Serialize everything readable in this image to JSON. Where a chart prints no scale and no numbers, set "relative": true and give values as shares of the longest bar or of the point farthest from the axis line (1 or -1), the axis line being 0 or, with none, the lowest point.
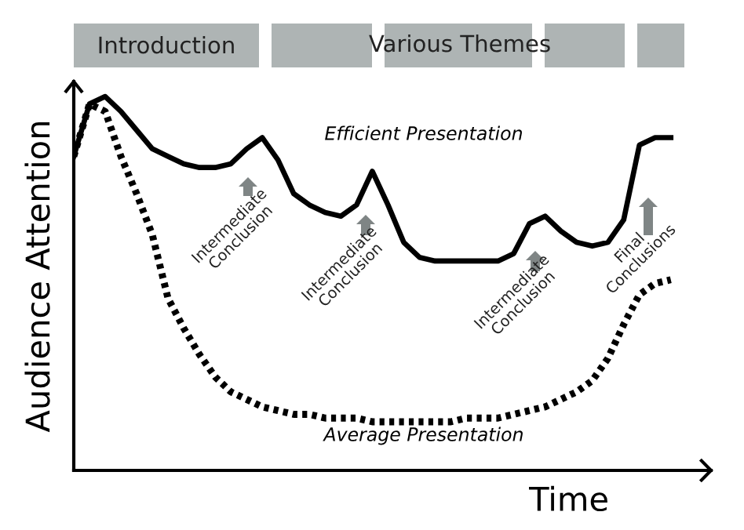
{
  "chart_data": {
    "type": "line",
    "relative": true,
    "xlabel": "Time",
    "ylabel": "Audience Attention",
    "categories": [
      null,
      null,
      null,
      null,
      null,
      null,
      null,
      null,
      null,
      null,
      null,
      null,
      null,
      null,
      null,
      null,
      null,
      null,
      null,
      null,
      null,
      null,
      null,
      null,
      null,
      null,
      null,
      null,
      null,
      null,
      null,
      null,
      null,
      null,
      null,
      null,
      null,
      null,
      null
    ],
    "series": [
      {
        "name": "Efficient Presentation",
        "color": "#000000",
        "line_style": "solid",
        "values": [
          0.84,
          0.98,
          1.0,
          0.96,
          0.91,
          0.86,
          0.84,
          0.82,
          0.81,
          0.81,
          0.82,
          0.86,
          0.89,
          0.83,
          0.74,
          0.71,
          0.69,
          0.68,
          0.71,
          0.8,
          0.71,
          0.61,
          0.57,
          0.56,
          0.56,
          0.56,
          0.56,
          0.56,
          0.58,
          0.66,
          0.68,
          0.64,
          0.61,
          0.6,
          0.61,
          0.67,
          0.87,
          0.89,
          0.89
        ]
      },
      {
        "name": "Average Presentation",
        "color": "#000000",
        "line_style": "dotted",
        "values": [
          0.84,
          0.98,
          0.96,
          0.84,
          0.74,
          0.63,
          0.46,
          0.38,
          0.31,
          0.25,
          0.21,
          0.19,
          0.17,
          0.16,
          0.15,
          0.15,
          0.14,
          0.14,
          0.14,
          0.13,
          0.13,
          0.13,
          0.13,
          0.13,
          0.13,
          0.14,
          0.14,
          0.14,
          0.15,
          0.16,
          0.17,
          0.19,
          0.21,
          0.24,
          0.3,
          0.39,
          0.47,
          0.5,
          0.51
        ]
      }
    ],
    "annotations": [
      "Introduction",
      "Various Themes",
      "Intermediate\nConclusion",
      "Intermediate\nConclusion",
      "Intermediate\nConclusion",
      "Final\nConclusions"
    ],
    "legend": false,
    "grid": false,
    "marker": "none"
  }
}
